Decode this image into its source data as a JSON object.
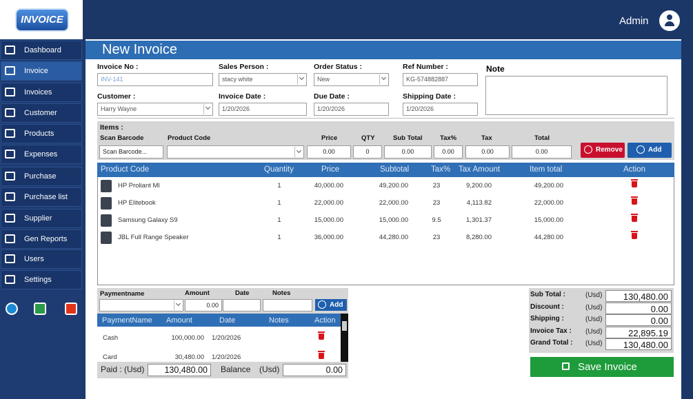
{
  "logo": "INVOICE",
  "header": {
    "user": "Admin"
  },
  "sidebar": {
    "menu": [
      "Dashboard",
      "Invoice",
      "Invoices",
      "Customer",
      "Products",
      "Expenses",
      "Purchase",
      "Purchase list",
      "Supplier",
      "Gen Reports",
      "Users",
      "Settings"
    ]
  },
  "form": {
    "title": "New Invoice",
    "fields": [
      {
        "label": "Invoice No :",
        "value": "INV-141"
      },
      {
        "label": "Sales Person :",
        "value": "stacy white"
      },
      {
        "label": "Order Status :",
        "value": "New"
      },
      {
        "label": "Ref Number :",
        "value": "KG-574882887"
      },
      {
        "label": "Customer :",
        "value": "Harry Wayne"
      },
      {
        "label": "Invoice Date :",
        "value": "1/20/2026"
      },
      {
        "label": "Due Date :",
        "value": "1/20/2026"
      },
      {
        "label": "Shipping Date :",
        "value": "1/20/2026"
      }
    ],
    "note_label": "Note"
  },
  "items": {
    "title": "Items :",
    "labels": [
      "Scan Barcode",
      "Product Code",
      "Price",
      "QTY",
      "Sub Total",
      "Tax%",
      "Tax",
      "Total"
    ],
    "inputs": [
      "Scan Barcode...",
      "0.00",
      "0",
      "0.00",
      "0.00",
      "0.00",
      "0.00"
    ],
    "buttons": [
      "Remove",
      "Add"
    ]
  },
  "table": {
    "columns": [
      "Product Code",
      "Quantity",
      "Price",
      "Subtotal",
      "Tax%",
      "Tax Amount",
      "Item total",
      "Action"
    ],
    "rows": [
      [
        "HP Proliant Ml",
        "1",
        "40,000.00",
        "49,200.00",
        "23",
        "9,200.00",
        "49,200.00"
      ],
      [
        "HP Elitebook",
        "1",
        "22,000.00",
        "22,000.00",
        "23",
        "4,113.82",
        "22,000.00"
      ],
      [
        "Samsung Galaxy S9",
        "1",
        "15,000.00",
        "15,000.00",
        "9.5",
        "1,301.37",
        "15,000.00"
      ],
      [
        "JBL Full Range Speaker",
        "1",
        "36,000.00",
        "44,280.00",
        "23",
        "8,280.00",
        "44,280.00"
      ]
    ]
  },
  "payment": {
    "labels": [
      "Paymentname",
      "Amount",
      "Date",
      "Notes"
    ],
    "amount": "0.00",
    "button": "Add",
    "columns": [
      "PaymentName",
      "Amount",
      "Date",
      "Notes",
      "Action"
    ],
    "rows": [
      [
        "Cash",
        "100,000.00",
        "1/20/2026"
      ],
      [
        "Card",
        "30,480.00",
        "1/20/2026"
      ]
    ],
    "paid": {
      "label": "Paid :",
      "currency": "(Usd)",
      "value": "130,480.00"
    },
    "balance": {
      "label": "Balance",
      "currency": "(Usd)",
      "value": "0.00"
    }
  },
  "totals": {
    "rows": [
      {
        "label": "Sub Total :",
        "currency": "(Usd)",
        "value": "130,480.00"
      },
      {
        "label": "Discount :",
        "currency": "(Usd)",
        "value": "0.00"
      },
      {
        "label": "Shipping  :",
        "currency": "(Usd)",
        "value": "0.00"
      },
      {
        "label": "Invoice Tax :",
        "currency": "(Usd)",
        "value": "22,895.19"
      },
      {
        "label": "Grand Total :",
        "currency": "(Usd)",
        "value": "130,480.00"
      }
    ],
    "save": "Save Invoice"
  }
}
